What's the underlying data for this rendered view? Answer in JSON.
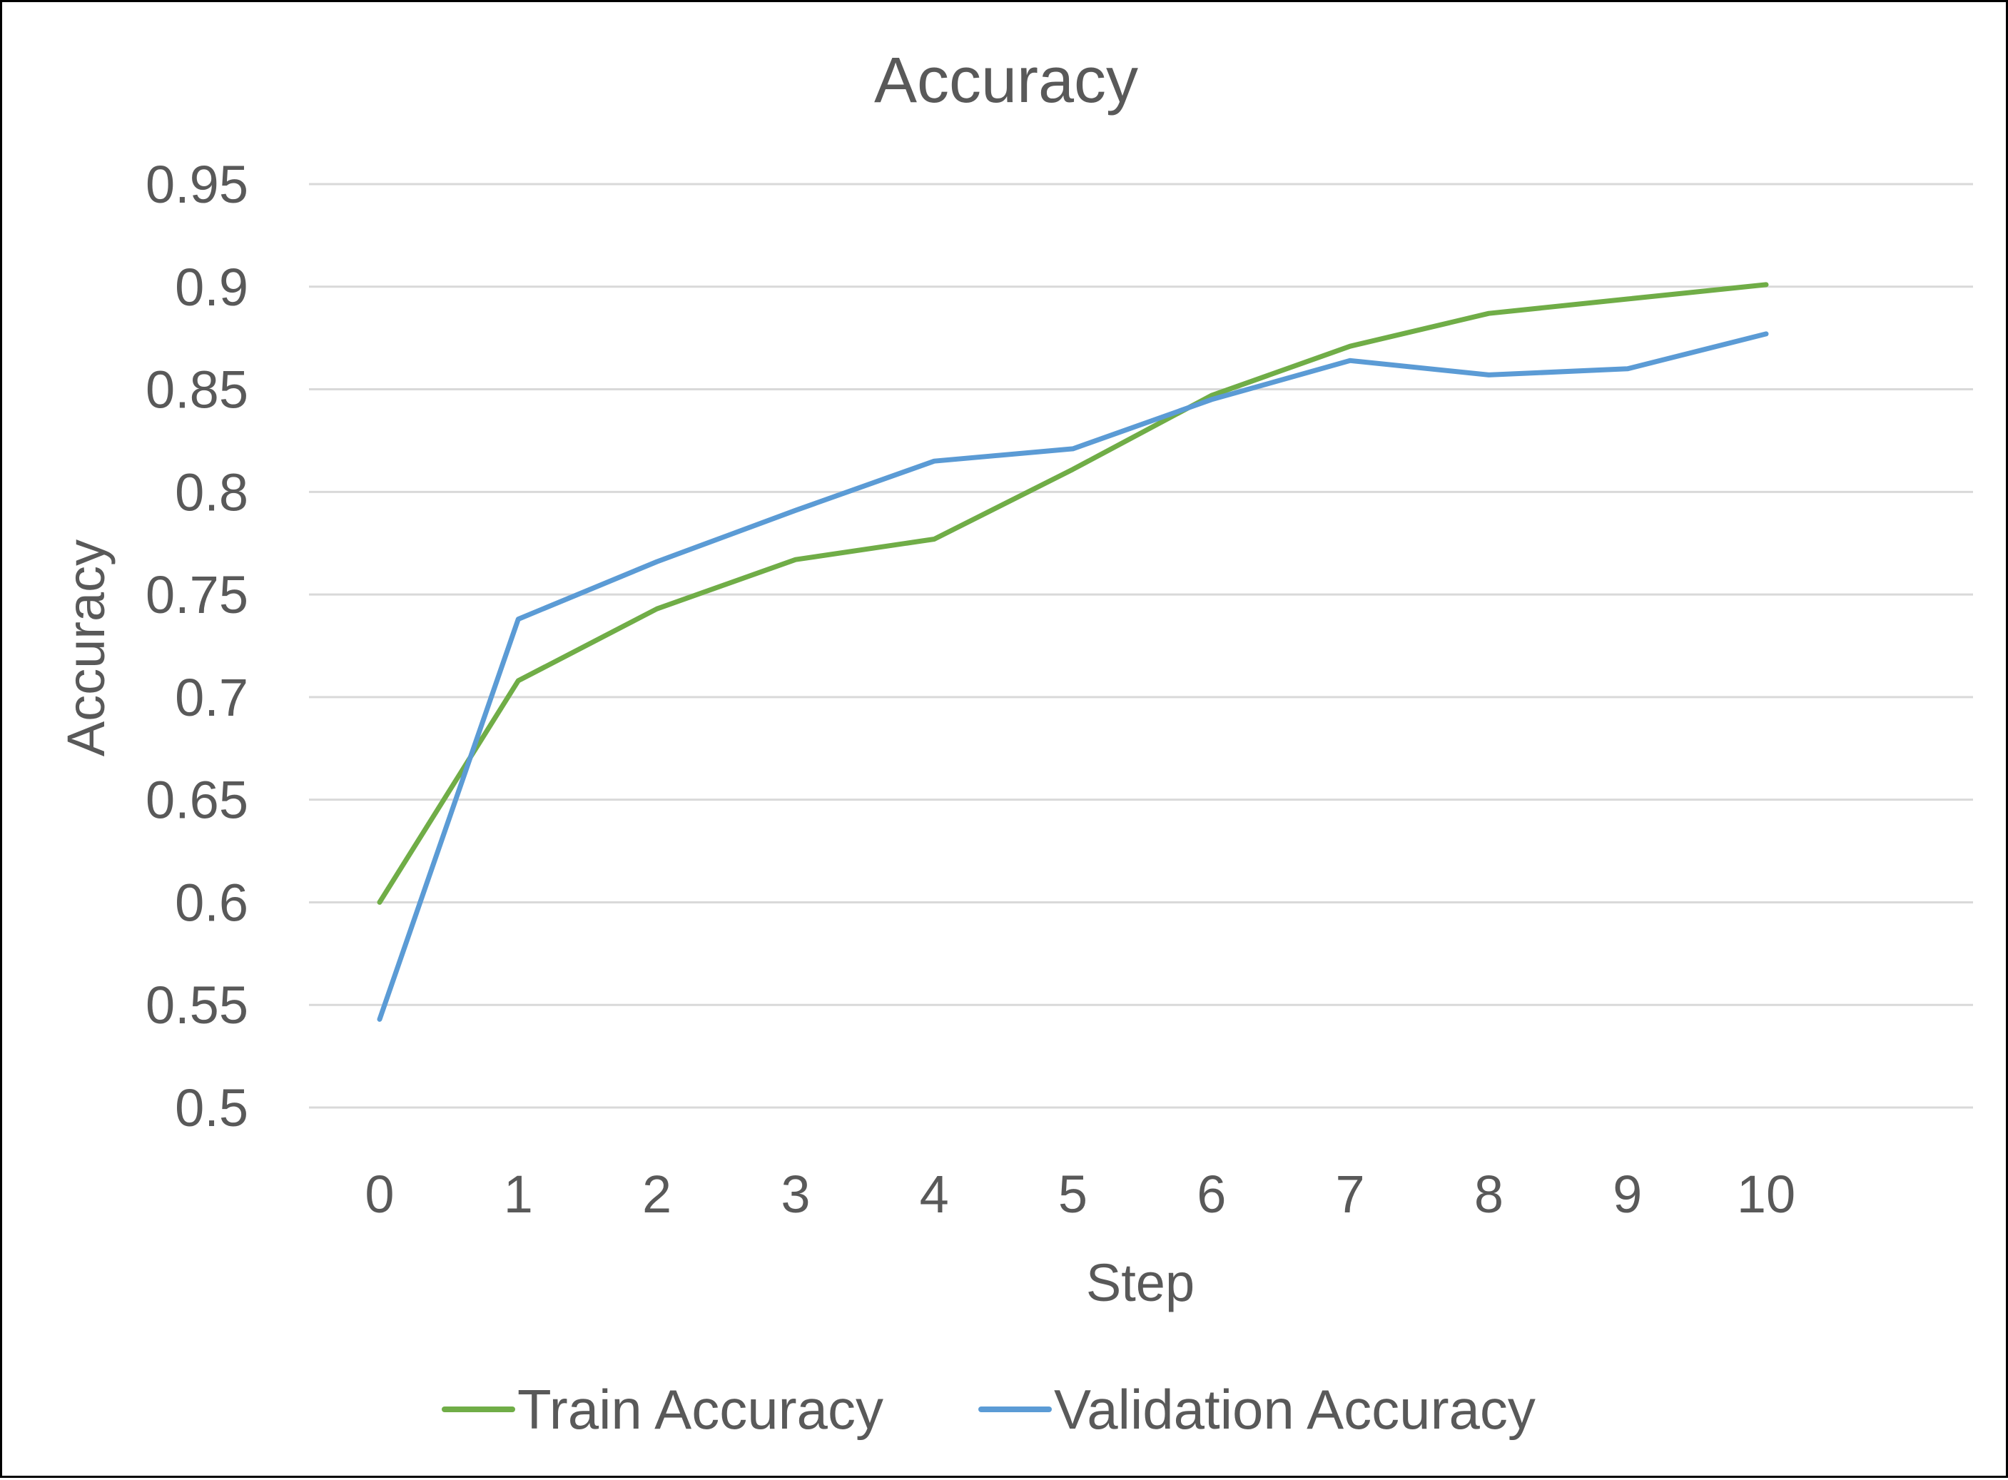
{
  "chart_data": {
    "type": "line",
    "title": "Accuracy",
    "xlabel": "Step",
    "ylabel": "Accuracy",
    "x": [
      0,
      1,
      2,
      3,
      4,
      5,
      6,
      7,
      8,
      9,
      10
    ],
    "ylim": [
      0.5,
      0.95
    ],
    "yticks": [
      "0.95",
      "0.9",
      "0.85",
      "0.8",
      "0.75",
      "0.7",
      "0.65",
      "0.6",
      "0.55",
      "0.5"
    ],
    "xticks": [
      "0",
      "1",
      "2",
      "3",
      "4",
      "5",
      "6",
      "7",
      "8",
      "9",
      "10"
    ],
    "grid": true,
    "legend_position": "bottom",
    "series": [
      {
        "name": "Train Accuracy",
        "color": "#70ad47",
        "values": [
          0.6,
          0.708,
          0.743,
          0.767,
          0.777,
          0.811,
          0.847,
          0.871,
          0.887,
          0.894,
          0.901
        ]
      },
      {
        "name": "Validation Accuracy",
        "color": "#5b9bd5",
        "values": [
          0.543,
          0.738,
          0.766,
          0.791,
          0.815,
          0.821,
          0.845,
          0.864,
          0.857,
          0.86,
          0.877
        ]
      }
    ]
  }
}
